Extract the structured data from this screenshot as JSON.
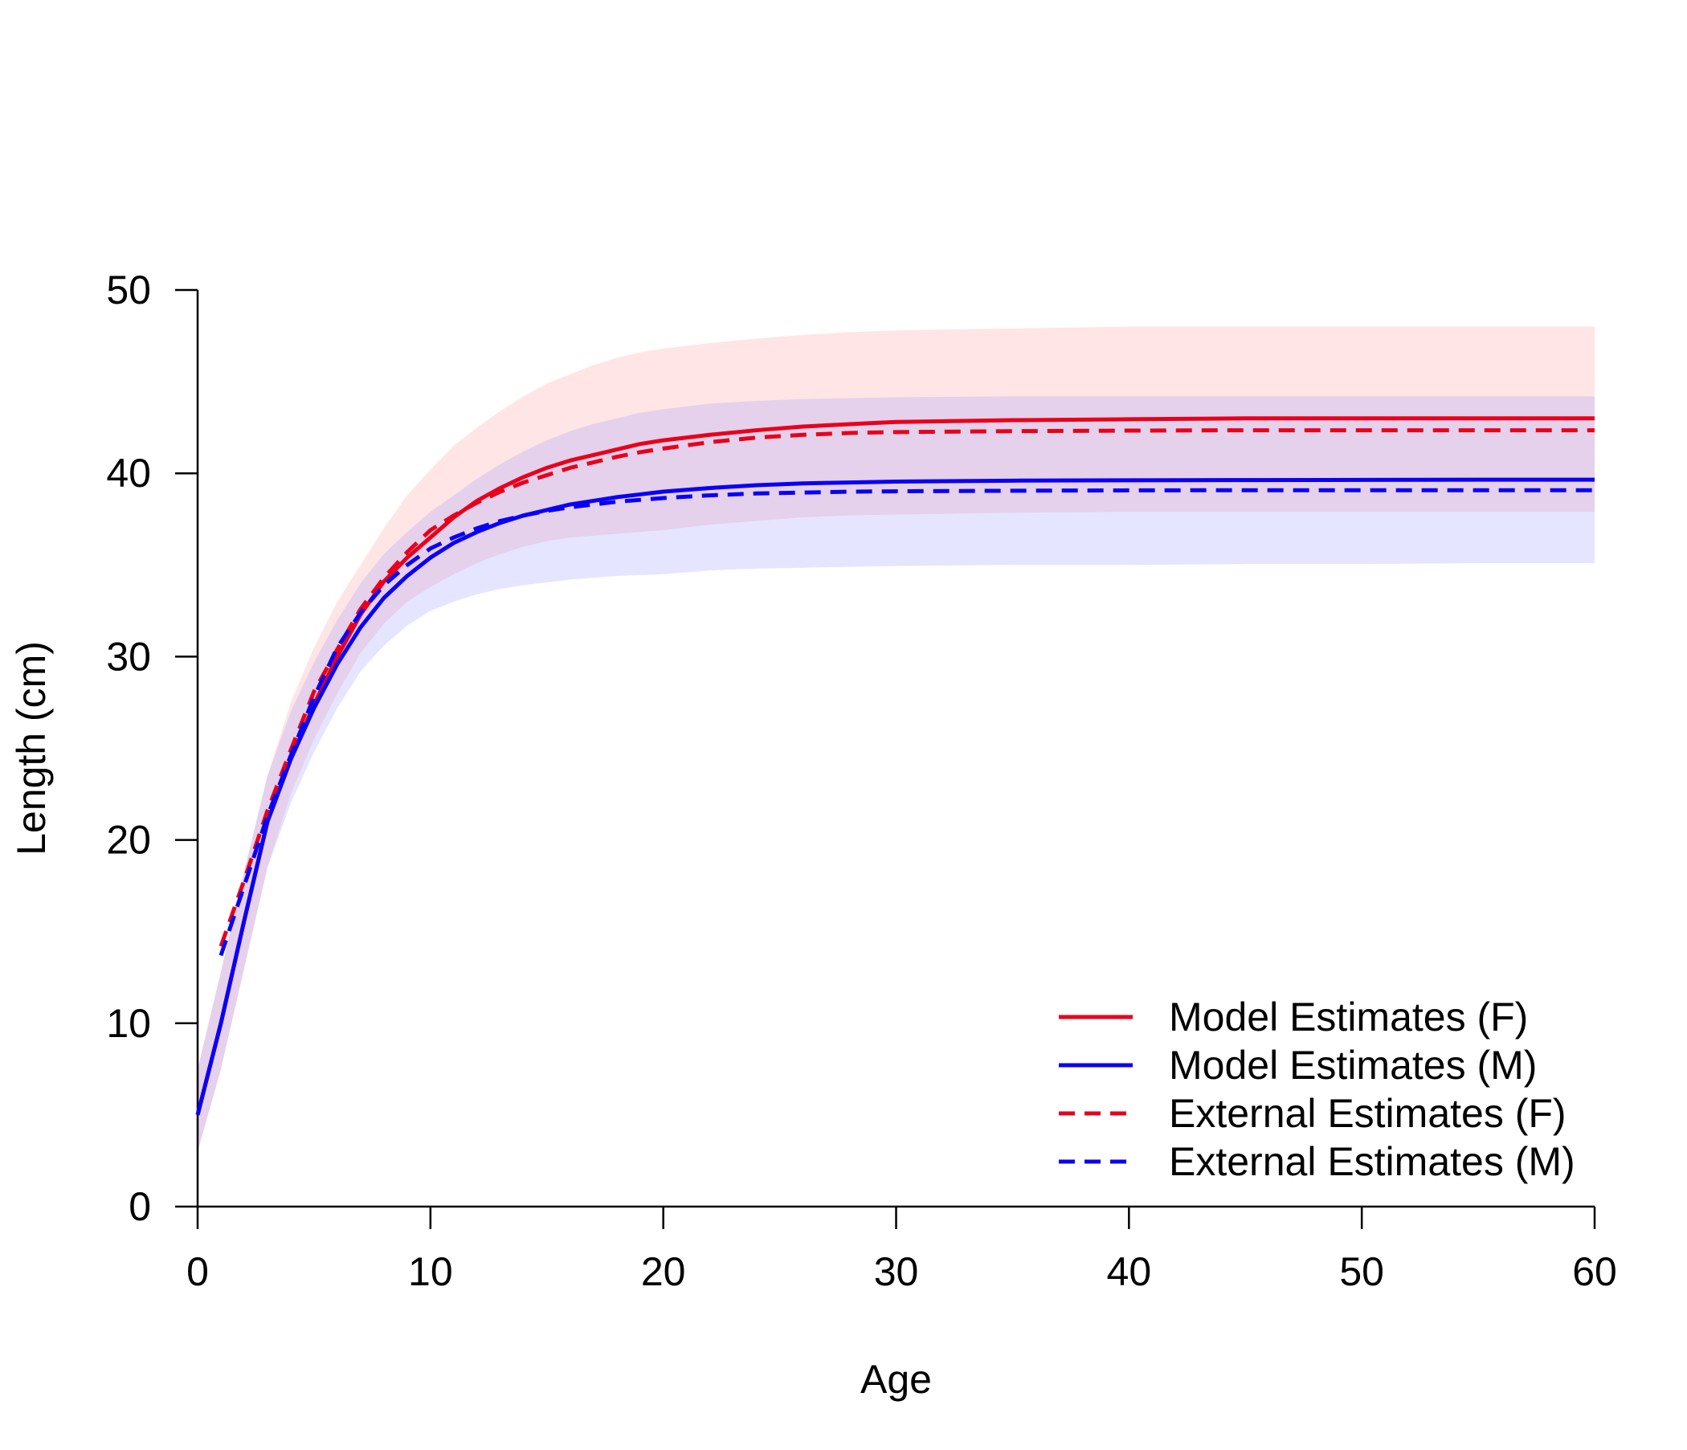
{
  "chart_data": {
    "type": "line",
    "title": "",
    "xlabel": "Age",
    "ylabel": "Length (cm)",
    "xlim": [
      0,
      60
    ],
    "ylim": [
      0,
      50
    ],
    "xticks": [
      "0",
      "10",
      "20",
      "30",
      "40",
      "50",
      "60"
    ],
    "yticks": [
      "0",
      "10",
      "20",
      "30",
      "40",
      "50"
    ],
    "grid": false,
    "legend_position": "bottom-right",
    "series": [
      {
        "name": "Model Estimates (F)",
        "color": "#e8001c",
        "style": "solid",
        "x": [
          0,
          1,
          2,
          3,
          4,
          5,
          6,
          7,
          8,
          9,
          10,
          11,
          12,
          13,
          14,
          15,
          16,
          17,
          18,
          19,
          20,
          22,
          24,
          26,
          28,
          30,
          35,
          40,
          45,
          50,
          55,
          60
        ],
        "y": [
          5,
          10,
          15.6,
          21,
          24.4,
          27.4,
          30,
          32.3,
          34.1,
          35.4,
          36.5,
          37.6,
          38.5,
          39.2,
          39.8,
          40.3,
          40.7,
          41.0,
          41.3,
          41.6,
          41.8,
          42.1,
          42.35,
          42.55,
          42.68,
          42.8,
          42.9,
          42.95,
          43,
          43,
          43,
          43
        ],
        "band_lower": [
          3,
          7.5,
          13,
          18.5,
          22.5,
          25.5,
          28,
          30.2,
          31.8,
          33,
          33.8,
          34.5,
          35.1,
          35.6,
          36,
          36.3,
          36.5,
          36.6,
          36.7,
          36.8,
          36.9,
          37.2,
          37.4,
          37.6,
          37.7,
          37.75,
          37.85,
          37.9,
          37.9,
          37.9,
          37.9,
          37.9
        ],
        "band_upper": [
          7.5,
          12.8,
          18.3,
          23.5,
          27.5,
          30.5,
          33,
          35,
          37,
          38.8,
          40.2,
          41.5,
          42.5,
          43.4,
          44.2,
          44.9,
          45.4,
          45.9,
          46.3,
          46.6,
          46.8,
          47.1,
          47.35,
          47.55,
          47.7,
          47.8,
          47.9,
          48,
          48,
          48,
          48,
          48
        ],
        "band_color": "#ff9999"
      },
      {
        "name": "Model Estimates (M)",
        "color": "#0a00f5",
        "style": "solid",
        "x": [
          0,
          1,
          2,
          3,
          4,
          5,
          6,
          7,
          8,
          9,
          10,
          11,
          12,
          13,
          14,
          15,
          16,
          17,
          18,
          19,
          20,
          22,
          24,
          26,
          28,
          30,
          35,
          40,
          45,
          50,
          55,
          60
        ],
        "y": [
          5,
          10,
          15.6,
          21,
          24.4,
          27.2,
          29.6,
          31.6,
          33.2,
          34.4,
          35.4,
          36.2,
          36.8,
          37.3,
          37.7,
          38.0,
          38.3,
          38.5,
          38.7,
          38.85,
          39.0,
          39.2,
          39.35,
          39.45,
          39.5,
          39.55,
          39.6,
          39.62,
          39.63,
          39.64,
          39.65,
          39.65
        ],
        "band_lower": [
          3,
          7.5,
          13,
          18.5,
          22,
          24.8,
          27.2,
          29.2,
          30.6,
          31.7,
          32.5,
          33,
          33.4,
          33.7,
          33.9,
          34.05,
          34.2,
          34.3,
          34.4,
          34.45,
          34.5,
          34.7,
          34.8,
          34.85,
          34.9,
          34.95,
          35,
          35,
          35.05,
          35.05,
          35.1,
          35.1
        ],
        "band_upper": [
          7.5,
          12.8,
          18.3,
          23.5,
          27,
          29.7,
          32,
          34,
          35.6,
          36.8,
          37.9,
          38.8,
          39.7,
          40.5,
          41.2,
          41.8,
          42.3,
          42.7,
          43.0,
          43.3,
          43.5,
          43.8,
          43.95,
          44.05,
          44.1,
          44.15,
          44.2,
          44.2,
          44.2,
          44.2,
          44.2,
          44.2
        ],
        "band_color": "#9999ff"
      },
      {
        "name": "External Estimates (F)",
        "color": "#e8001c",
        "style": "dashed",
        "x": [
          1,
          2,
          3,
          4,
          5,
          6,
          7,
          8,
          9,
          10,
          11,
          12,
          13,
          14,
          15,
          16,
          17,
          18,
          19,
          20,
          22,
          24,
          26,
          28,
          30,
          35,
          40,
          45,
          50,
          55,
          60
        ],
        "y": [
          14.2,
          17.8,
          21.6,
          24.9,
          28.1,
          30.4,
          32.6,
          34.3,
          35.7,
          36.9,
          37.7,
          38.4,
          39.0,
          39.5,
          39.9,
          40.3,
          40.6,
          40.9,
          41.15,
          41.35,
          41.7,
          41.95,
          42.1,
          42.2,
          42.25,
          42.3,
          42.33,
          42.35,
          42.35,
          42.35,
          42.35
        ]
      },
      {
        "name": "External Estimates (M)",
        "color": "#0a00f5",
        "style": "dashed",
        "x": [
          1,
          2,
          3,
          4,
          5,
          6,
          7,
          8,
          9,
          10,
          11,
          12,
          13,
          14,
          15,
          16,
          17,
          18,
          19,
          20,
          22,
          24,
          26,
          28,
          30,
          35,
          40,
          45,
          50,
          55,
          60
        ],
        "y": [
          13.7,
          17.5,
          21.3,
          24.6,
          27.8,
          30.5,
          32.4,
          33.9,
          35.0,
          35.9,
          36.5,
          37.0,
          37.4,
          37.7,
          37.95,
          38.15,
          38.3,
          38.45,
          38.55,
          38.65,
          38.8,
          38.9,
          38.95,
          39.0,
          39.02,
          39.05,
          39.07,
          39.08,
          39.08,
          39.08,
          39.08
        ]
      }
    ]
  }
}
